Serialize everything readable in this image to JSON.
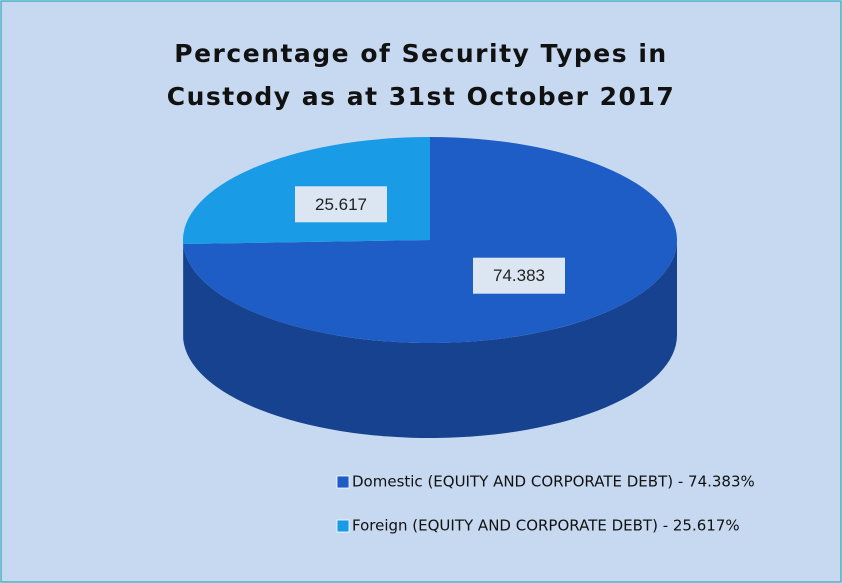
{
  "chart_data": {
    "type": "pie",
    "title": [
      "Percentage of Security Types in",
      "Custody as at 31st October 2017"
    ],
    "categories": [
      "Domestic (EQUITY AND CORPORATE DEBT) - 74.383%",
      "Foreign (EQUITY AND CORPORATE DEBT) - 25.617%"
    ],
    "values": [
      74.383,
      25.617
    ],
    "colors": [
      "#1e5cc6",
      "#1a9be6"
    ],
    "legend": "bottom"
  }
}
